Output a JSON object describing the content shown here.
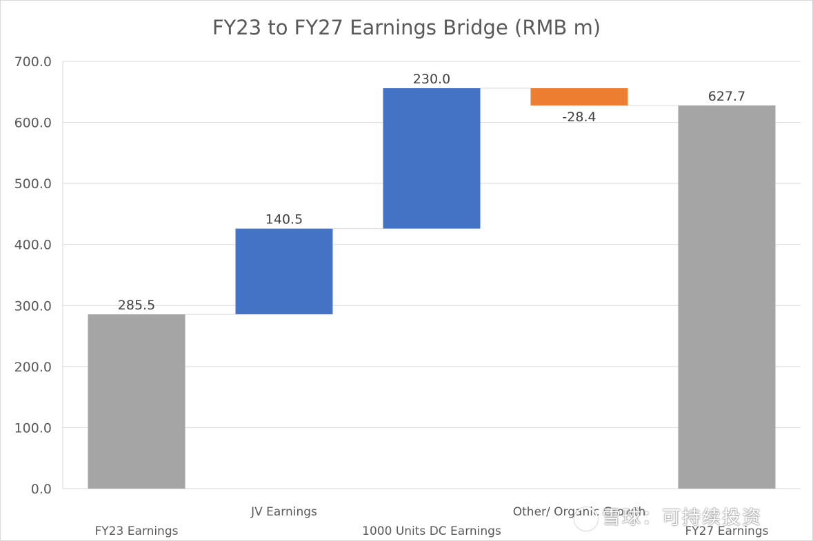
{
  "chart_data": {
    "type": "waterfall",
    "title": "FY23 to FY27 Earnings Bridge (RMB m)",
    "categories": [
      "FY23 Earnings",
      "JV Earnings",
      "1000 Units DC Earnings",
      "Other/ Organic Growth",
      "FY27 Earnings"
    ],
    "values": [
      285.5,
      140.5,
      230.0,
      -28.4,
      627.7
    ],
    "data_labels": [
      "285.5",
      "140.5",
      "230.0",
      "-28.4",
      "627.7"
    ],
    "kinds": [
      "total",
      "increase",
      "increase",
      "decrease",
      "total"
    ],
    "ylim": [
      0,
      700
    ],
    "yticks": [
      "0.0",
      "100.0",
      "200.0",
      "300.0",
      "400.0",
      "500.0",
      "600.0",
      "700.0"
    ],
    "grid": true,
    "legend": "none",
    "colors": {
      "increase": "#4472c4",
      "decrease": "#ed7d31",
      "total": "#a5a5a5",
      "connector": "#d9d9d9"
    }
  },
  "watermark": {
    "text": "雪球：可持续投资"
  }
}
